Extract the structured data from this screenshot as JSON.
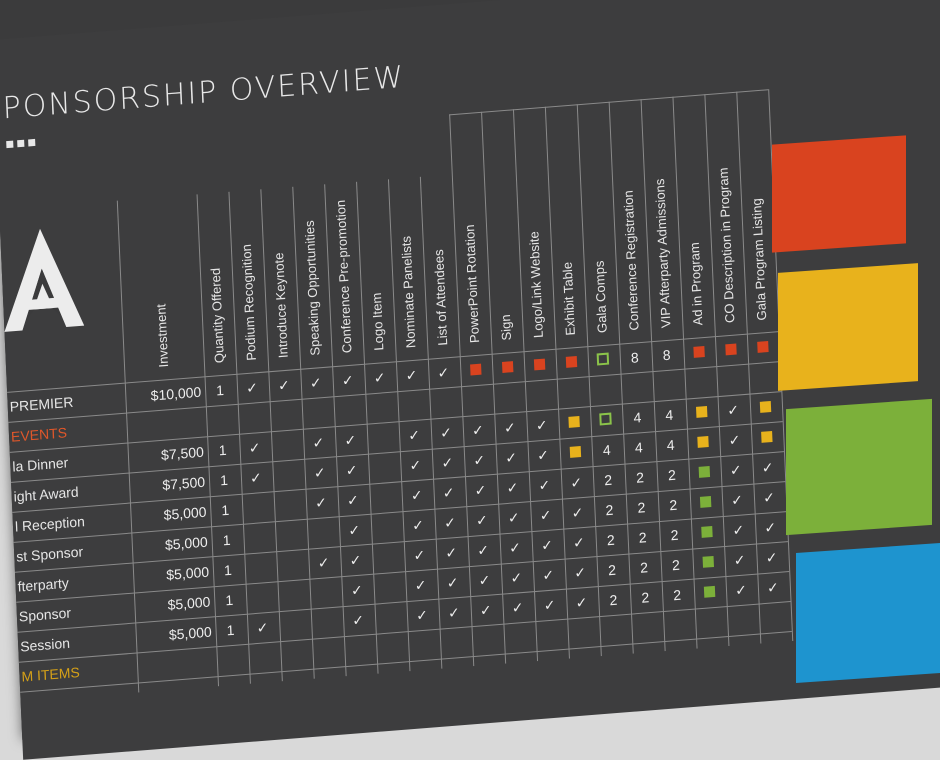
{
  "title": "PONSORSHIP OVERVIEW",
  "columns": [
    "Investment",
    "Quantity Offered",
    "Podium Recognition",
    "Introduce Keynote",
    "Speaking Opportunities",
    "Conference Pre-promotion",
    "Logo Item",
    "Nominate Panelists",
    "List of Attendees",
    "PowerPoint  Rotation",
    "Sign",
    "Logo/Link Website",
    "Exhibit Table",
    "Gala Comps",
    "Conference Registration",
    "VIP Afterparty Admissions",
    "Ad in Program",
    "CO Description in Program",
    "Gala Program Listing"
  ],
  "rows": [
    {
      "label": "PREMIER",
      "type": "row",
      "investment": "$10,000",
      "cells": [
        "1",
        "✓",
        "✓",
        "✓",
        "✓",
        "✓",
        "✓",
        "✓",
        "R",
        "R",
        "R",
        "R",
        "G-o",
        "8",
        "8",
        "R",
        "R",
        "R"
      ]
    },
    {
      "label": "EVENTS",
      "type": "category",
      "investment": "",
      "cells": []
    },
    {
      "label": "la Dinner",
      "type": "row",
      "investment": "$7,500",
      "cells": [
        "1",
        "✓",
        "",
        "✓",
        "✓",
        "",
        "✓",
        "✓",
        "✓",
        "✓",
        "✓",
        "Y",
        "G-o",
        "4",
        "4",
        "Y",
        "✓",
        "Y"
      ]
    },
    {
      "label": "ight Award",
      "type": "row",
      "investment": "$7,500",
      "cells": [
        "1",
        "✓",
        "",
        "✓",
        "✓",
        "",
        "✓",
        "✓",
        "✓",
        "✓",
        "✓",
        "Y",
        "4",
        "4",
        "4",
        "Y",
        "✓",
        "Y"
      ]
    },
    {
      "label": "l Reception",
      "type": "row",
      "investment": "$5,000",
      "cells": [
        "1",
        "",
        "",
        "✓",
        "✓",
        "",
        "✓",
        "✓",
        "✓",
        "✓",
        "✓",
        "✓",
        "2",
        "2",
        "2",
        "G",
        "✓",
        "✓"
      ]
    },
    {
      "label": "st Sponsor",
      "type": "row",
      "investment": "$5,000",
      "cells": [
        "1",
        "",
        "",
        "",
        "✓",
        "",
        "✓",
        "✓",
        "✓",
        "✓",
        "✓",
        "✓",
        "2",
        "2",
        "2",
        "G",
        "✓",
        "✓"
      ]
    },
    {
      "label": "fterparty",
      "type": "row",
      "investment": "$5,000",
      "cells": [
        "1",
        "",
        "",
        "✓",
        "✓",
        "",
        "✓",
        "✓",
        "✓",
        "✓",
        "✓",
        "✓",
        "2",
        "2",
        "2",
        "G",
        "✓",
        "✓"
      ]
    },
    {
      "label": "Sponsor",
      "type": "row",
      "investment": "$5,000",
      "cells": [
        "1",
        "",
        "",
        "",
        "✓",
        "",
        "✓",
        "✓",
        "✓",
        "✓",
        "✓",
        "✓",
        "2",
        "2",
        "2",
        "G",
        "✓",
        "✓"
      ]
    },
    {
      "label": "Session",
      "type": "row",
      "investment": "$5,000",
      "cells": [
        "1",
        "✓",
        "",
        "",
        "✓",
        "",
        "✓",
        "✓",
        "✓",
        "✓",
        "✓",
        "✓",
        "2",
        "2",
        "2",
        "G",
        "✓",
        "✓"
      ]
    },
    {
      "label": "M ITEMS",
      "type": "category2",
      "investment": "",
      "cells": []
    }
  ],
  "swatches": [
    "#d9431f",
    "#e8b21c",
    "#7cb03a",
    "#1e94cf"
  ],
  "marker_colors": {
    "R": "#d9431f",
    "Y": "#e8b21c",
    "G": "#7cb03a"
  }
}
